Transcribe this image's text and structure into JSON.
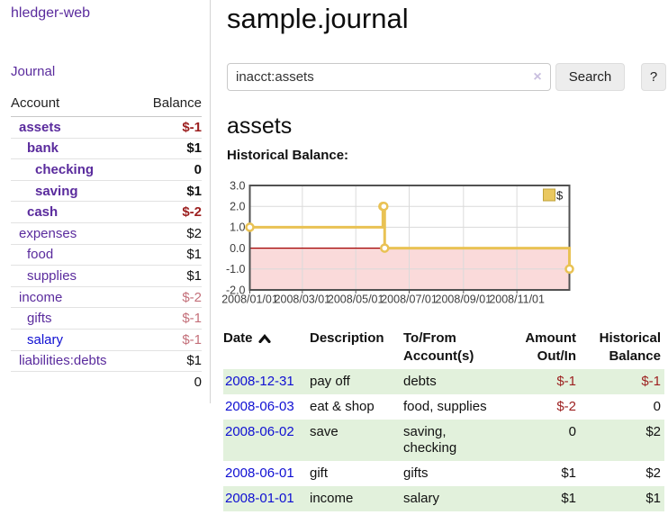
{
  "app": {
    "brand": "hledger-web",
    "nav_journal": "Journal"
  },
  "sidebar": {
    "headers": {
      "account": "Account",
      "balance": "Balance"
    },
    "accounts": [
      {
        "name": "assets",
        "level": 1,
        "bold": true,
        "balance": "$-1",
        "balance_style": "negative"
      },
      {
        "name": "bank",
        "level": 2,
        "bold": true,
        "balance": "$1",
        "balance_style": "normal"
      },
      {
        "name": "checking",
        "level": 3,
        "bold": true,
        "balance": "0",
        "balance_style": "normal"
      },
      {
        "name": "saving",
        "level": 3,
        "bold": true,
        "balance": "$1",
        "balance_style": "normal"
      },
      {
        "name": "cash",
        "level": 2,
        "bold": true,
        "balance": "$-2",
        "balance_style": "negative"
      },
      {
        "name": "expenses",
        "level": 1,
        "bold": false,
        "balance": "$2",
        "balance_style": "normal"
      },
      {
        "name": "food",
        "level": 2,
        "bold": false,
        "balance": "$1",
        "balance_style": "normal"
      },
      {
        "name": "supplies",
        "level": 2,
        "bold": false,
        "balance": "$1",
        "balance_style": "normal"
      },
      {
        "name": "income",
        "level": 1,
        "bold": false,
        "balance": "$-2",
        "balance_style": "negative-muted"
      },
      {
        "name": "gifts",
        "level": 2,
        "bold": false,
        "balance": "$-1",
        "balance_style": "negative-muted"
      },
      {
        "name": "salary",
        "level": 2,
        "bold": false,
        "balance": "$-1",
        "balance_style": "negative-muted",
        "link_style": "unvisited"
      },
      {
        "name": "liabilities:debts",
        "level": 1,
        "bold": false,
        "balance": "$1",
        "balance_style": "normal"
      }
    ],
    "total": "0"
  },
  "main": {
    "title": "sample.journal",
    "search": {
      "value": "inacct:assets",
      "clear": "×",
      "button": "Search",
      "help": "?"
    },
    "account_heading": "assets",
    "chart_heading": "Historical Balance:"
  },
  "chart_data": {
    "type": "line",
    "style": "step-after",
    "title": "Historical Balance:",
    "legend": {
      "label": "$",
      "position": "top-right"
    },
    "series": [
      {
        "name": "$",
        "points": [
          [
            "2008-01-01",
            1
          ],
          [
            "2008-06-01",
            2
          ],
          [
            "2008-06-02",
            2
          ],
          [
            "2008-06-03",
            0
          ],
          [
            "2008-12-31",
            -1
          ]
        ]
      }
    ],
    "x_range": [
      "2008-01-01",
      "2008-12-31"
    ],
    "ylim": [
      -2,
      3
    ],
    "y_ticks": [
      3.0,
      2.0,
      1.0,
      0.0,
      -1.0,
      -2.0
    ],
    "x_ticks": [
      {
        "label": "2008/01/01",
        "date": "2008-01-01"
      },
      {
        "label": "2008/03/01",
        "date": "2008-03-01"
      },
      {
        "label": "2008/05/01",
        "date": "2008-05-01"
      },
      {
        "label": "2008/07/01",
        "date": "2008-07-01"
      },
      {
        "label": "2008/09/01",
        "date": "2008-09-01"
      },
      {
        "label": "2008/11/01",
        "date": "2008-11-01"
      }
    ],
    "grid": true,
    "negative_region_shaded": true,
    "colors": {
      "line": "#e9c254",
      "marker_fill": "#ffffff",
      "legend_fill": "#eac860",
      "legend_border": "#bfa23a",
      "negative_region": "#fadada",
      "zero_line": "#a30000",
      "grid": "#dadada",
      "border": "#525252",
      "axis_text": "#3d3d3d"
    }
  },
  "register": {
    "headers": {
      "date": "Date",
      "description": "Description",
      "tofrom": "To/From\nAccount(s)",
      "amount": "Amount\nOut/In",
      "historical": "Historical\nBalance"
    },
    "rows": [
      {
        "date": "2008-12-31",
        "description": "pay off",
        "accounts": "debts",
        "amount": "$-1",
        "amount_style": "negative",
        "balance": "$-1",
        "balance_style": "negative"
      },
      {
        "date": "2008-06-03",
        "description": "eat & shop",
        "accounts": "food, supplies",
        "amount": "$-2",
        "amount_style": "negative",
        "balance": "0",
        "balance_style": "normal"
      },
      {
        "date": "2008-06-02",
        "description": "save",
        "accounts": "saving,\nchecking",
        "amount": "0",
        "amount_style": "normal",
        "balance": "$2",
        "balance_style": "normal"
      },
      {
        "date": "2008-06-01",
        "description": "gift",
        "accounts": "gifts",
        "amount": "$1",
        "amount_style": "normal",
        "balance": "$2",
        "balance_style": "normal"
      },
      {
        "date": "2008-01-01",
        "description": "income",
        "accounts": "salary",
        "amount": "$1",
        "amount_style": "normal",
        "balance": "$1",
        "balance_style": "normal"
      }
    ]
  }
}
